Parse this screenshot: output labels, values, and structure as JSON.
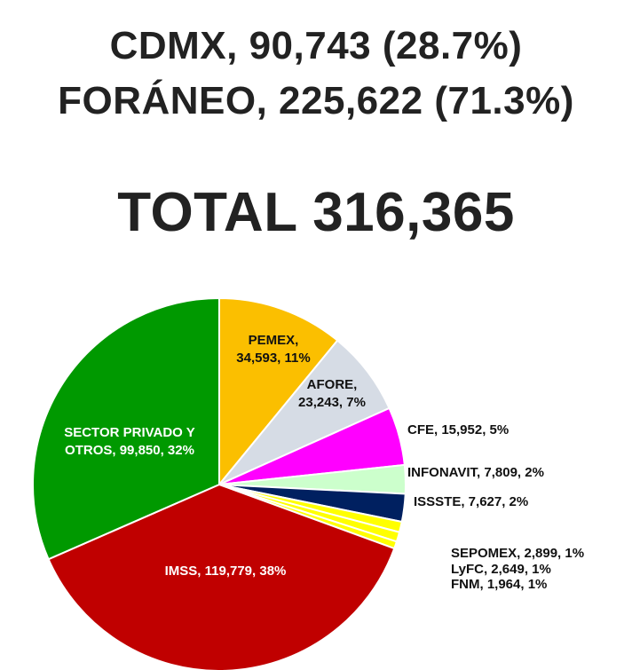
{
  "header": {
    "line1": "CDMX, 90,743 (28.7%)",
    "line2": "FORÁNEO, 225,622 (71.3%)",
    "total": "TOTAL 316,365"
  },
  "chart_data": {
    "type": "pie",
    "title": "",
    "slices": [
      {
        "name": "PEMEX",
        "value": 34593,
        "percent": 11,
        "color": "#FBBF00",
        "label_lines": [
          "PEMEX,",
          "34,593, 11%"
        ],
        "label_color": "#111111"
      },
      {
        "name": "AFORE",
        "value": 23243,
        "percent": 7,
        "color": "#D6DCE5",
        "label_lines": [
          "AFORE,",
          "23,243, 7%"
        ],
        "label_color": "#111111"
      },
      {
        "name": "CFE",
        "value": 15952,
        "percent": 5,
        "color": "#FF00FF",
        "label_lines": [
          "CFE, 15,952, 5%"
        ],
        "label_color": "#111111"
      },
      {
        "name": "INFONAVIT",
        "value": 7809,
        "percent": 2,
        "color": "#CCFFCC",
        "label_lines": [
          "INFONAVIT, 7,809, 2%"
        ],
        "label_color": "#111111"
      },
      {
        "name": "ISSSTE",
        "value": 7627,
        "percent": 2,
        "color": "#002060",
        "label_lines": [
          "ISSSTE, 7,627, 2%"
        ],
        "label_color": "#111111"
      },
      {
        "name": "SEPOMEX",
        "value": 2899,
        "percent": 1,
        "color": "#FFFF00",
        "label_lines": [
          "SEPOMEX, 2,899, 1%"
        ],
        "label_color": "#111111"
      },
      {
        "name": "LyFC",
        "value": 2649,
        "percent": 1,
        "color": "#FFFF00",
        "label_lines": [
          "LyFC, 2,649, 1%"
        ],
        "label_color": "#111111"
      },
      {
        "name": "FNM",
        "value": 1964,
        "percent": 1,
        "color": "#FFFF00",
        "label_lines": [
          "FNM, 1,964, 1%"
        ],
        "label_color": "#111111"
      },
      {
        "name": "IMSS",
        "value": 119779,
        "percent": 38,
        "color": "#C00000",
        "label_lines": [
          "IMSS, 119,779, 38%"
        ],
        "label_color": "#ffffff"
      },
      {
        "name": "SECTOR PRIVADO Y OTROS",
        "value": 99850,
        "percent": 32,
        "color": "#009900",
        "label_lines": [
          "SECTOR PRIVADO Y",
          "OTROS, 99,850, 32%"
        ],
        "label_color": "#ffffff"
      }
    ]
  }
}
